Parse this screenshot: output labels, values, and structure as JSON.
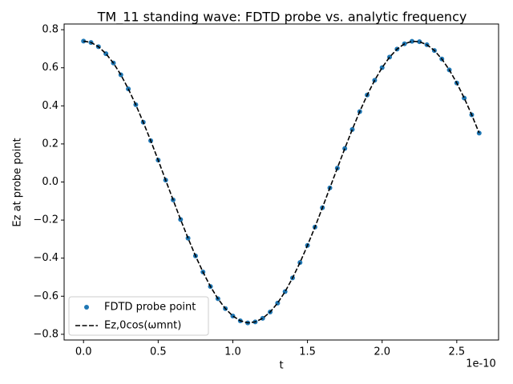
{
  "chart_data": {
    "type": "scatter_line",
    "title": "TM_11 standing wave: FDTD probe vs. analytic frequency",
    "x_label": "t",
    "y_label": "Ez at probe point",
    "x_offset_label": "1e-10",
    "x": [
      0,
      0.05,
      0.1,
      0.15,
      0.2,
      0.25,
      0.3,
      0.35,
      0.4,
      0.45,
      0.5,
      0.55,
      0.6,
      0.65,
      0.7,
      0.75,
      0.8,
      0.85,
      0.9,
      0.95,
      1.0,
      1.05,
      1.1,
      1.15,
      1.2,
      1.25,
      1.3,
      1.35,
      1.4,
      1.45,
      1.5,
      1.55,
      1.6,
      1.65,
      1.7,
      1.75,
      1.8,
      1.85,
      1.9,
      1.95,
      2.0,
      2.05,
      2.1,
      2.15,
      2.2,
      2.25,
      2.3,
      2.35,
      2.4,
      2.45,
      2.5,
      2.55,
      2.6,
      2.65
    ],
    "series": [
      {
        "name": "FDTD probe point",
        "color": "#1f77b4",
        "style": "markers",
        "values": [
          0.74,
          0.733,
          0.711,
          0.674,
          0.625,
          0.563,
          0.489,
          0.406,
          0.314,
          0.217,
          0.115,
          0.01,
          -0.094,
          -0.197,
          -0.295,
          -0.388,
          -0.473,
          -0.549,
          -0.613,
          -0.665,
          -0.704,
          -0.729,
          -0.74,
          -0.735,
          -0.716,
          -0.683,
          -0.636,
          -0.576,
          -0.504,
          -0.423,
          -0.333,
          -0.237,
          -0.135,
          -0.031,
          0.073,
          0.176,
          0.276,
          0.37,
          0.457,
          0.534,
          0.601,
          0.656,
          0.698,
          0.726,
          0.739,
          0.737,
          0.721,
          0.691,
          0.646,
          0.589,
          0.52,
          0.441,
          0.353,
          0.257
        ]
      },
      {
        "name": "Ez,0cos(ωmnt)",
        "color": "#000000",
        "style": "dashed",
        "values": [
          0.74,
          0.733,
          0.711,
          0.674,
          0.625,
          0.563,
          0.489,
          0.406,
          0.314,
          0.217,
          0.115,
          0.01,
          -0.094,
          -0.197,
          -0.295,
          -0.388,
          -0.473,
          -0.549,
          -0.613,
          -0.665,
          -0.704,
          -0.729,
          -0.74,
          -0.735,
          -0.716,
          -0.683,
          -0.636,
          -0.576,
          -0.504,
          -0.423,
          -0.333,
          -0.237,
          -0.135,
          -0.031,
          0.073,
          0.176,
          0.276,
          0.37,
          0.457,
          0.534,
          0.601,
          0.656,
          0.698,
          0.726,
          0.739,
          0.737,
          0.721,
          0.691,
          0.646,
          0.589,
          0.52,
          0.441,
          0.353,
          0.257
        ]
      }
    ],
    "xlim": [
      -0.13,
      2.78
    ],
    "ylim": [
      -0.83,
      0.83
    ],
    "xticks": [
      {
        "value": 0,
        "label": "0.0"
      },
      0.5,
      {
        "value": 1,
        "label": "1.0"
      },
      1.5,
      {
        "value": 2,
        "label": "2.0"
      },
      2.5
    ],
    "yticks": [
      {
        "value": -0.8,
        "label": "−0.8"
      },
      {
        "value": -0.6,
        "label": "−0.6"
      },
      {
        "value": -0.4,
        "label": "−0.4"
      },
      {
        "value": -0.2,
        "label": "−0.2"
      },
      {
        "value": 0,
        "label": "0.0"
      },
      0.2,
      0.4,
      0.6,
      0.8
    ],
    "legend": "lower left",
    "grid": false
  }
}
